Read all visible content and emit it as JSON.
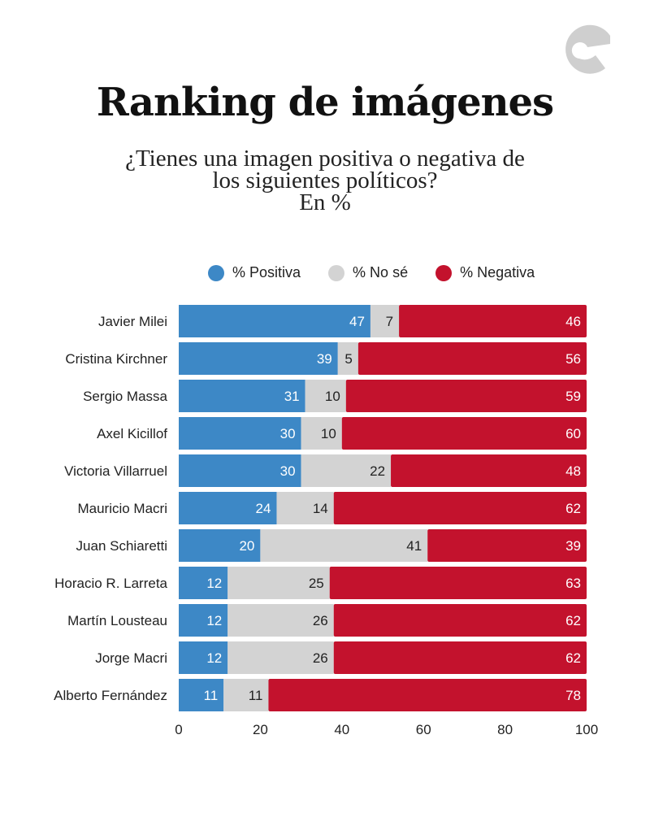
{
  "logo": {
    "icon": "brand-logo-icon"
  },
  "title": "Ranking de imágenes",
  "subtitle": [
    "¿Tienes una imagen positiva o negativa de",
    "los siguientes políticos?",
    "En %"
  ],
  "chart_data": {
    "type": "bar",
    "orientation": "horizontal-stacked",
    "categories": [
      "Javier Milei",
      "Cristina Kirchner",
      "Sergio Massa",
      "Axel Kicillof",
      "Victoria Villarruel",
      "Mauricio Macri",
      "Juan Schiaretti",
      "Horacio R. Larreta",
      "Martín Lousteau",
      "Jorge Macri",
      "Alberto Fernández"
    ],
    "series": [
      {
        "name": "% Positiva",
        "color": "#3d88c6",
        "label_color": "#ffffff",
        "values": [
          47,
          39,
          31,
          30,
          30,
          24,
          20,
          12,
          12,
          12,
          11
        ]
      },
      {
        "name": "% No sé",
        "color": "#d3d3d3",
        "label_color": "#222222",
        "values": [
          7,
          5,
          10,
          10,
          22,
          14,
          41,
          25,
          26,
          26,
          11
        ]
      },
      {
        "name": "% Negativa",
        "color": "#c3122d",
        "label_color": "#ffffff",
        "values": [
          46,
          56,
          59,
          60,
          48,
          62,
          39,
          63,
          62,
          62,
          78
        ]
      }
    ],
    "xlim": [
      0,
      100
    ],
    "xticks": [
      0,
      20,
      40,
      60,
      80,
      100
    ],
    "legend": "top-center",
    "grid": false
  }
}
